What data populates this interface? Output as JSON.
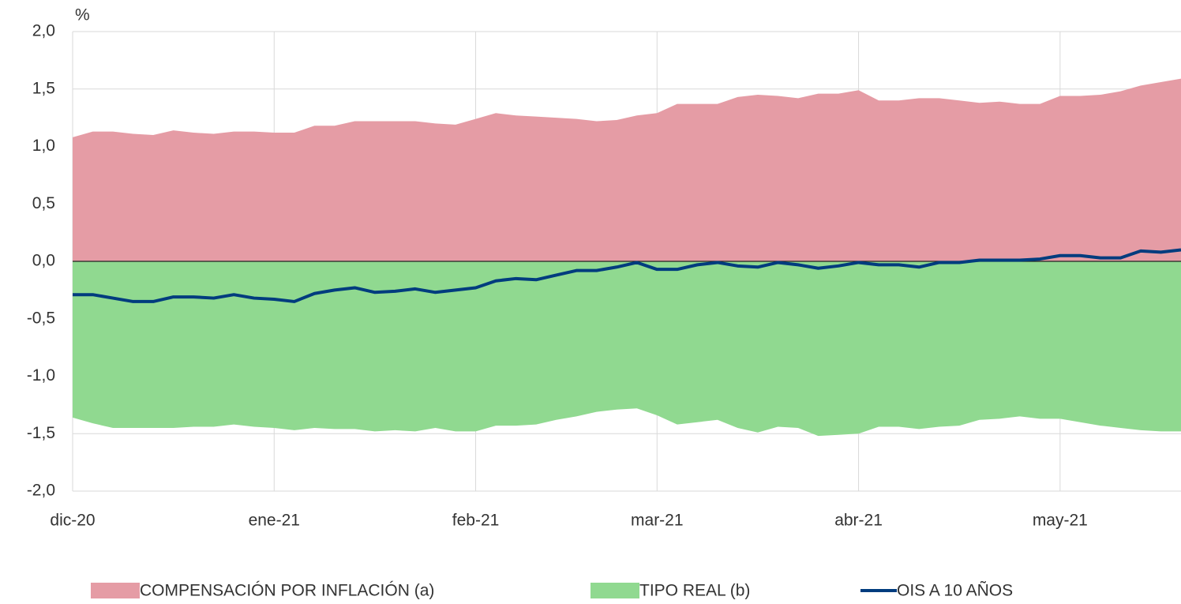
{
  "chart_data": {
    "type": "area-line",
    "y_unit": "%",
    "categories": [
      "dic-20",
      null,
      null,
      null,
      null,
      null,
      null,
      null,
      null,
      null,
      "ene-21",
      null,
      null,
      null,
      null,
      null,
      null,
      null,
      null,
      null,
      "feb-21",
      null,
      null,
      null,
      null,
      null,
      null,
      null,
      null,
      "mar-21",
      null,
      null,
      null,
      null,
      null,
      null,
      null,
      null,
      null,
      "abr-21",
      null,
      null,
      null,
      null,
      null,
      null,
      null,
      null,
      null,
      "may-21",
      null,
      null,
      null,
      null,
      null,
      null
    ],
    "series": [
      {
        "name": "COMPENSACIÓN POR INFLACIÓN (a)",
        "type": "area",
        "color": "#e59ca5",
        "values": [
          1.08,
          1.13,
          1.13,
          1.11,
          1.1,
          1.14,
          1.12,
          1.11,
          1.13,
          1.13,
          1.12,
          1.12,
          1.18,
          1.18,
          1.22,
          1.22,
          1.22,
          1.22,
          1.2,
          1.19,
          1.24,
          1.29,
          1.27,
          1.26,
          1.25,
          1.24,
          1.22,
          1.23,
          1.27,
          1.29,
          1.37,
          1.37,
          1.37,
          1.43,
          1.45,
          1.44,
          1.42,
          1.46,
          1.46,
          1.49,
          1.4,
          1.4,
          1.42,
          1.42,
          1.4,
          1.38,
          1.39,
          1.37,
          1.37,
          1.44,
          1.44,
          1.45,
          1.48,
          1.53,
          1.56,
          1.59
        ]
      },
      {
        "name": "TIPO REAL (b)",
        "type": "area",
        "color": "#90d990",
        "values": [
          -1.36,
          -1.41,
          -1.45,
          -1.45,
          -1.45,
          -1.45,
          -1.44,
          -1.44,
          -1.42,
          -1.44,
          -1.45,
          -1.47,
          -1.45,
          -1.46,
          -1.46,
          -1.48,
          -1.47,
          -1.48,
          -1.45,
          -1.48,
          -1.48,
          -1.43,
          -1.43,
          -1.42,
          -1.38,
          -1.35,
          -1.31,
          -1.29,
          -1.28,
          -1.34,
          -1.42,
          -1.4,
          -1.38,
          -1.45,
          -1.49,
          -1.44,
          -1.45,
          -1.52,
          -1.51,
          -1.5,
          -1.44,
          -1.44,
          -1.46,
          -1.44,
          -1.43,
          -1.38,
          -1.37,
          -1.35,
          -1.37,
          -1.37,
          -1.4,
          -1.43,
          -1.45,
          -1.47,
          -1.48,
          -1.48
        ]
      },
      {
        "name": "OIS A 10 AÑOS",
        "type": "line",
        "color": "#003c7e",
        "values": [
          -0.29,
          -0.29,
          -0.32,
          -0.35,
          -0.35,
          -0.31,
          -0.31,
          -0.32,
          -0.29,
          -0.32,
          -0.33,
          -0.35,
          -0.28,
          -0.25,
          -0.23,
          -0.27,
          -0.26,
          -0.24,
          -0.27,
          -0.25,
          -0.23,
          -0.17,
          -0.15,
          -0.16,
          -0.12,
          -0.08,
          -0.08,
          -0.05,
          -0.01,
          -0.07,
          -0.07,
          -0.03,
          -0.01,
          -0.04,
          -0.05,
          -0.01,
          -0.03,
          -0.06,
          -0.04,
          -0.01,
          -0.03,
          -0.03,
          -0.05,
          -0.01,
          -0.01,
          0.01,
          0.01,
          0.01,
          0.02,
          0.05,
          0.05,
          0.03,
          0.03,
          0.09,
          0.08,
          0.1
        ]
      }
    ],
    "ylim": [
      -2,
      2
    ],
    "yticks": [
      {
        "value": 2,
        "label": "2,0"
      },
      {
        "value": 1.5,
        "label": "1,5"
      },
      {
        "value": 1,
        "label": "1,0"
      },
      {
        "value": 0.5,
        "label": "0,5"
      },
      {
        "value": 0,
        "label": "0,0"
      },
      {
        "value": -0.5,
        "label": "-0,5"
      },
      {
        "value": -1,
        "label": "-1,0"
      },
      {
        "value": -1.5,
        "label": "-1,5"
      },
      {
        "value": -2,
        "label": "-2,0"
      }
    ],
    "grid": true
  }
}
